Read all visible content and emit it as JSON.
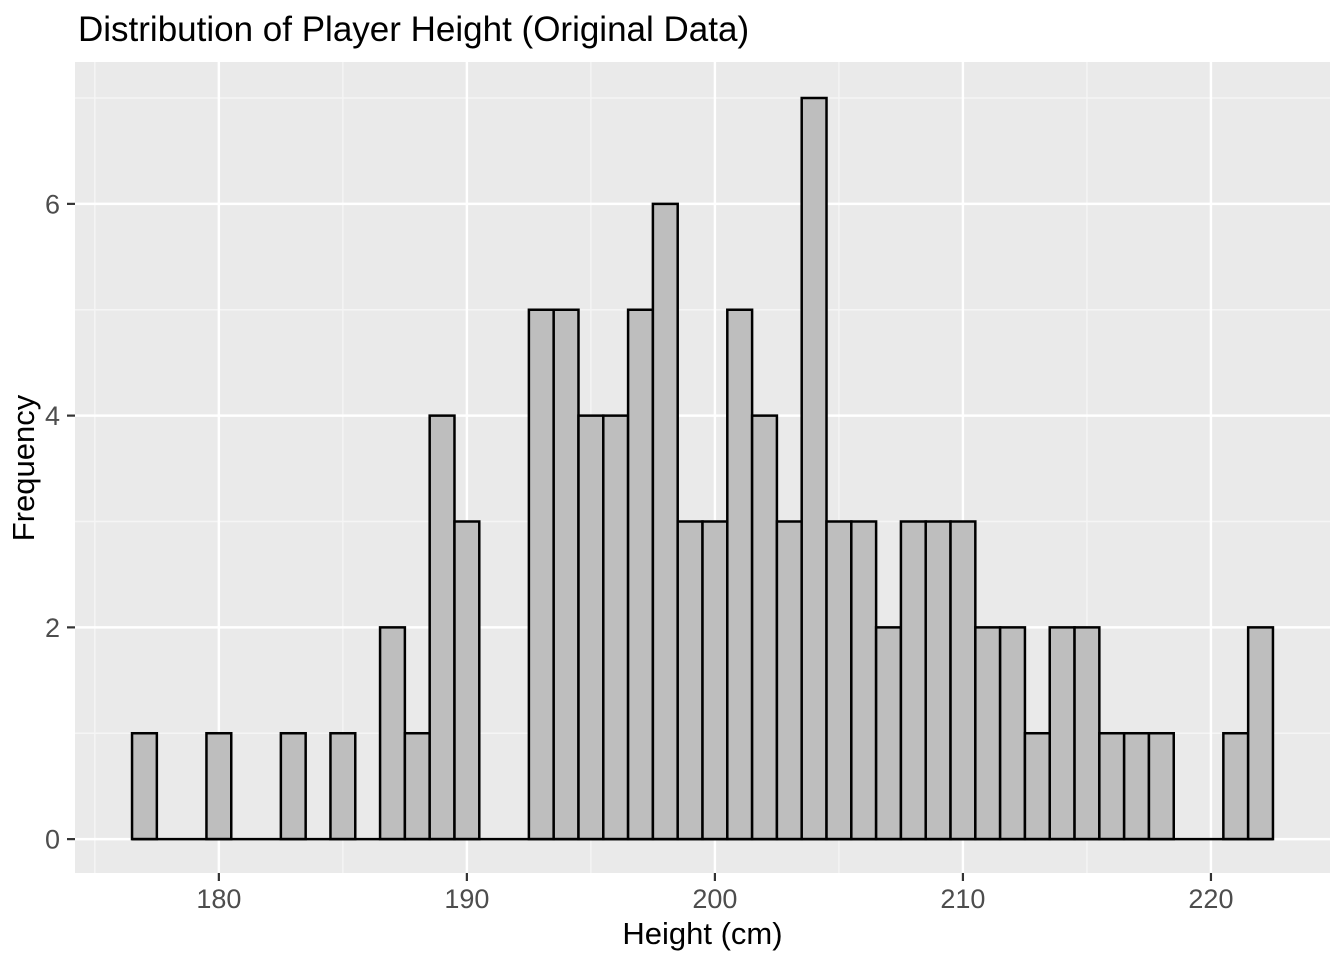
{
  "chart_data": {
    "type": "bar",
    "subtype": "histogram",
    "title": "Distribution of Player Height (Original Data)",
    "xlabel": "Height (cm)",
    "ylabel": "Frequency",
    "bin_width": 1,
    "bin_centers": [
      177,
      178,
      179,
      180,
      181,
      182,
      183,
      184,
      185,
      186,
      187,
      188,
      189,
      190,
      191,
      192,
      193,
      194,
      195,
      196,
      197,
      198,
      199,
      200,
      201,
      202,
      203,
      204,
      205,
      206,
      207,
      208,
      209,
      210,
      211,
      212,
      213,
      214,
      215,
      216,
      217,
      218,
      219,
      220,
      221,
      222
    ],
    "counts": [
      1,
      0,
      0,
      1,
      0,
      0,
      1,
      0,
      1,
      0,
      2,
      1,
      4,
      3,
      0,
      0,
      5,
      5,
      4,
      4,
      5,
      6,
      3,
      3,
      5,
      4,
      3,
      7,
      3,
      3,
      2,
      3,
      3,
      3,
      2,
      2,
      1,
      2,
      2,
      1,
      1,
      1,
      0,
      0,
      1,
      2
    ],
    "x_ticks": [
      180,
      190,
      200,
      210,
      220
    ],
    "x_minor_gridlines": [
      175,
      185,
      195,
      205,
      215
    ],
    "y_ticks": [
      0,
      2,
      4,
      6
    ],
    "y_minor_gridlines": [
      1,
      3,
      5,
      7
    ],
    "xlim": [
      174.2,
      224.8
    ],
    "ylim": [
      -0.32,
      7.34
    ],
    "grid": true,
    "legend": "none",
    "style": {
      "panel_background": "#EAEAEA",
      "grid_major_color": "#FFFFFF",
      "grid_minor_color": "#F5F5F5",
      "bar_fill": "#BEBEBE",
      "bar_stroke": "#000000",
      "tick_color": "#333333",
      "tick_label_color": "#4D4D4D",
      "title_color": "#000000",
      "axis_title_color": "#000000"
    }
  }
}
